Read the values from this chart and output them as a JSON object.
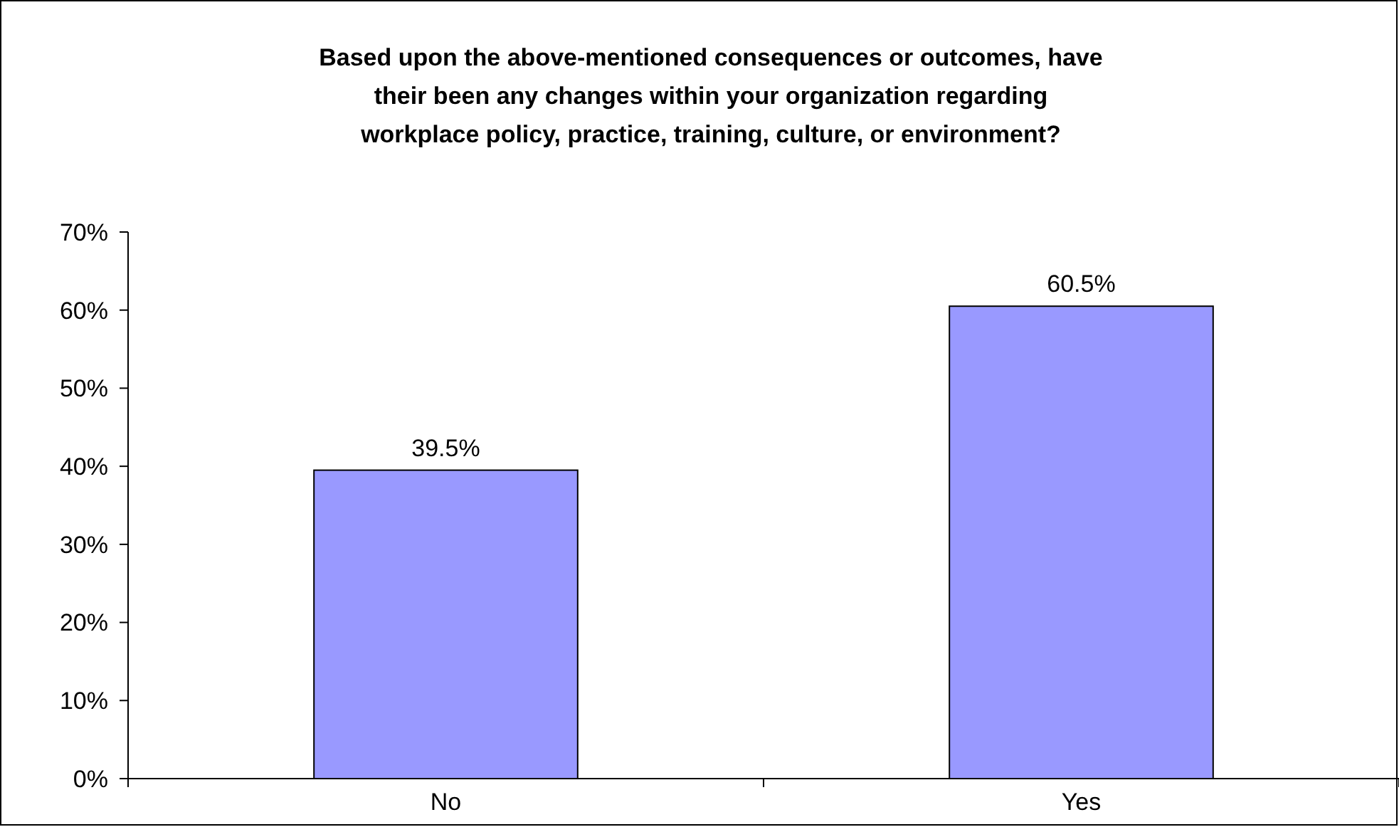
{
  "chart_data": {
    "type": "bar",
    "title": "Based upon the above-mentioned consequences or outcomes, have\ntheir been any changes within your organization regarding\nworkplace policy, practice, training, culture, or environment?",
    "categories": [
      "No",
      "Yes"
    ],
    "values": [
      39.5,
      60.5
    ],
    "value_labels": [
      "39.5%",
      "60.5%"
    ],
    "color": "#9999ff",
    "ylim": [
      0,
      70
    ],
    "yticks": [
      {
        "value": 0,
        "label": "0%"
      },
      {
        "value": 10,
        "label": "10%"
      },
      {
        "value": 20,
        "label": "20%"
      },
      {
        "value": 30,
        "label": "30%"
      },
      {
        "value": 40,
        "label": "40%"
      },
      {
        "value": 50,
        "label": "50%"
      },
      {
        "value": 60,
        "label": "60%"
      },
      {
        "value": 70,
        "label": "70%"
      }
    ],
    "grid": false
  }
}
